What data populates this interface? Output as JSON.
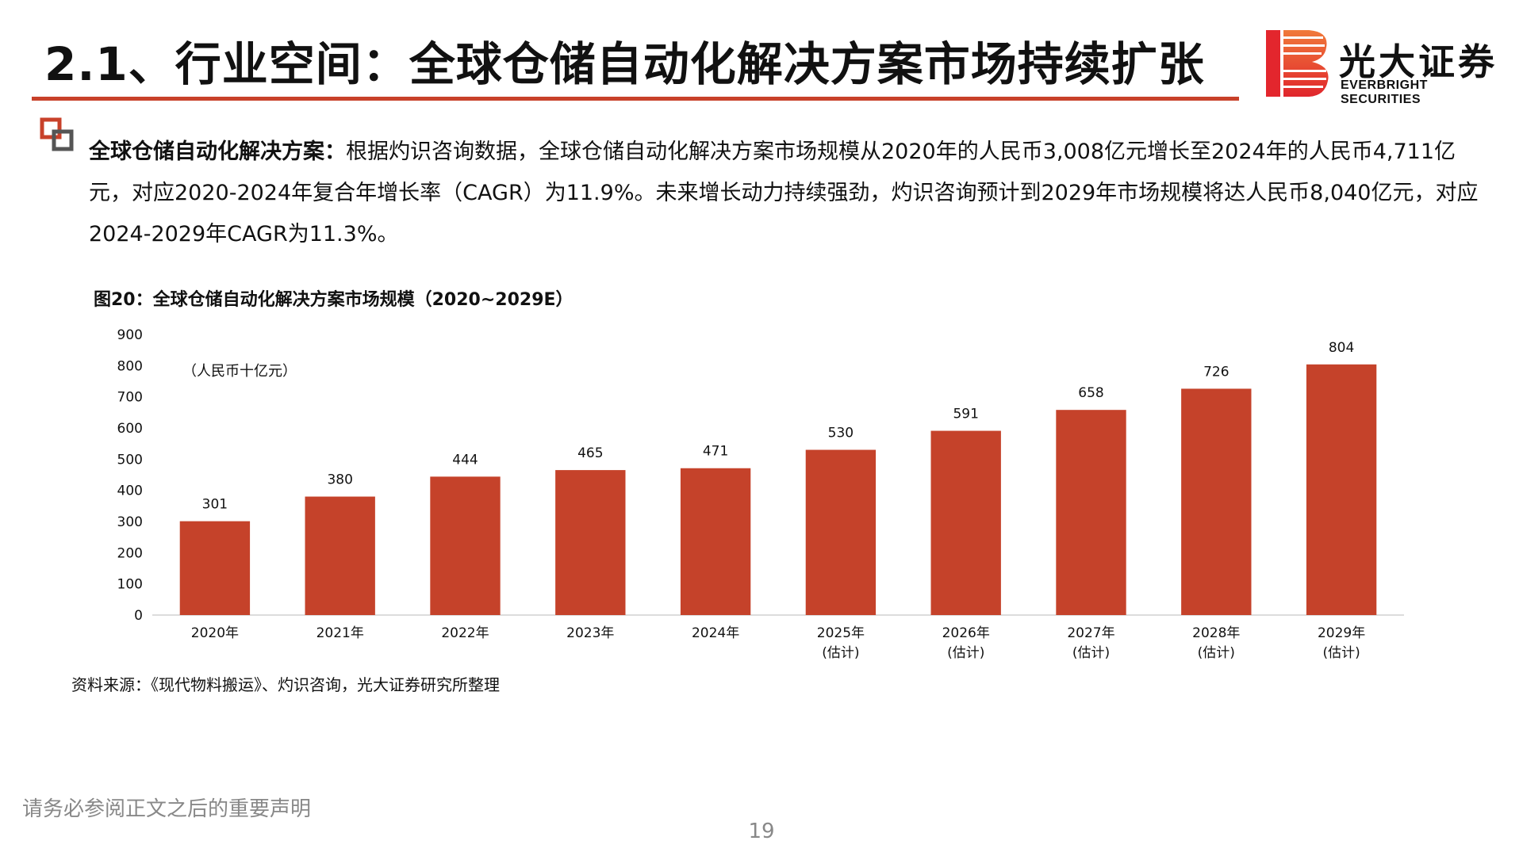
{
  "header": {
    "title": "2.1、行业空间：全球仓储自动化解决方案市场持续扩张",
    "logo_cn": "光大证券",
    "logo_en": "EVERBRIGHT SECURITIES"
  },
  "body": {
    "lead": "全球仓储自动化解决方案：",
    "text": "根据灼识咨询数据，全球仓储自动化解决方案市场规模从2020年的人民币3,008亿元增长至2024年的人民币4,711亿元，对应2020-2024年复合年增长率（CAGR）为11.9%。未来增长动力持续强劲，灼识咨询预计到2029年市场规模将达人民币8,040亿元，对应2024-2029年CAGR为11.3%。"
  },
  "figure": {
    "title": "图20：全球仓储自动化解决方案市场规模（2020~2029E）",
    "source": "资料来源：《现代物料搬运》、灼识咨询，光大证券研究所整理"
  },
  "chart_data": {
    "type": "bar",
    "unit_label": "（人民币十亿元）",
    "categories": [
      "2020年",
      "2021年",
      "2022年",
      "2023年",
      "2024年",
      "2025年",
      "2026年",
      "2027年",
      "2028年",
      "2029年"
    ],
    "category_sublabels": [
      "",
      "",
      "",
      "",
      "",
      "(估计)",
      "(估计)",
      "(估计)",
      "(估计)",
      "(估计)"
    ],
    "values": [
      301,
      380,
      444,
      465,
      471,
      530,
      591,
      658,
      726,
      804
    ],
    "ylim": [
      0,
      900
    ],
    "yticks": [
      0,
      100,
      200,
      300,
      400,
      500,
      600,
      700,
      800,
      900
    ],
    "bar_color": "#c5422a",
    "grid": false,
    "legend": "none"
  },
  "footer": {
    "disclaimer": "请务必参阅正文之后的重要声明",
    "page": "19"
  },
  "colors": {
    "accent": "#c8412a",
    "logo_red": "#e0262c",
    "logo_orange": "#f08a3c",
    "muted_text": "#888888"
  }
}
